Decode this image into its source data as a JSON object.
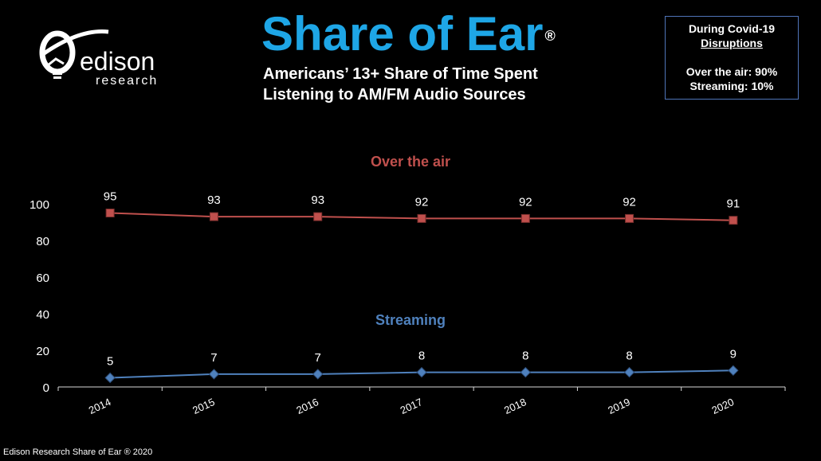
{
  "header": {
    "title": "Share of Ear",
    "title_mark": "®",
    "subtitle_line1": "Americans’ 13+ Share of Time Spent",
    "subtitle_line2": "Listening to AM/FM Audio Sources"
  },
  "logo": {
    "word1": "edison",
    "word2": "research"
  },
  "covid_box": {
    "line1": "During Covid-19",
    "line2": "Disruptions",
    "line3": "Over the air: 90%",
    "line4": "Streaming: 10%"
  },
  "footer": {
    "text": "Edison Research Share of Ear ® 2020"
  },
  "colors": {
    "title": "#1ea6e6",
    "over_the_air": "#c0504d",
    "streaming": "#4f81bd",
    "box_border": "#4f74b8"
  },
  "chart_data": {
    "type": "line",
    "categories": [
      "2014",
      "2015",
      "2016",
      "2017",
      "2018",
      "2019",
      "2020"
    ],
    "series": [
      {
        "name": "Over the air",
        "values": [
          95,
          93,
          93,
          92,
          92,
          92,
          91
        ],
        "color": "#c0504d",
        "marker": "square"
      },
      {
        "name": "Streaming",
        "values": [
          5,
          7,
          7,
          8,
          8,
          8,
          9
        ],
        "color": "#4f81bd",
        "marker": "diamond"
      }
    ],
    "yticks": [
      0,
      20,
      40,
      60,
      80,
      100
    ],
    "ylim": [
      0,
      100
    ],
    "grid": false,
    "legend": "series names placed as labels above each line"
  }
}
